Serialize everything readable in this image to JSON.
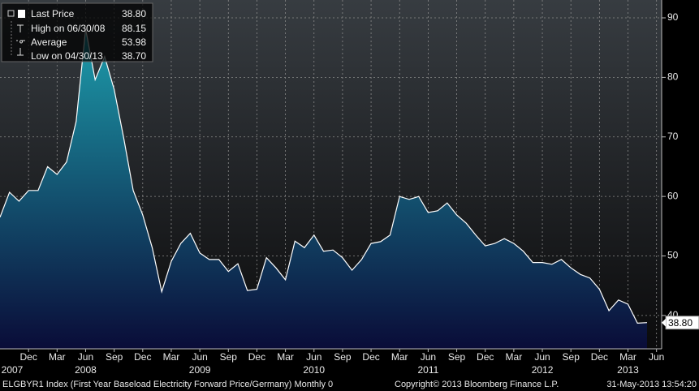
{
  "chart_data": {
    "type": "area",
    "series_name": "ELGBYR1 Index (First Year Baseload Electricity Forward Price/Germany)  Monthly 0",
    "categories": [
      null,
      null,
      null,
      "Dec",
      null,
      null,
      "Mar",
      null,
      null,
      "Jun",
      null,
      null,
      "Sep",
      null,
      null,
      "Dec",
      null,
      null,
      "Mar",
      null,
      null,
      "Jun",
      null,
      null,
      "Sep",
      null,
      null,
      "Dec",
      null,
      null,
      "Mar",
      null,
      null,
      "Jun",
      null,
      null,
      "Sep",
      null,
      null,
      "Dec",
      null,
      null,
      "Mar",
      null,
      null,
      "Jun",
      null,
      null,
      "Sep",
      null,
      null,
      "Dec",
      null,
      null,
      "Mar",
      null,
      null,
      "Jun",
      null,
      null,
      "Sep",
      null,
      null,
      "Dec",
      null,
      null,
      "Mar",
      null,
      null,
      "Jun"
    ],
    "year_categories": [
      null,
      "2007",
      null,
      null,
      null,
      null,
      null,
      null,
      null,
      "2008",
      null,
      null,
      null,
      null,
      null,
      null,
      null,
      null,
      null,
      null,
      null,
      "2009",
      null,
      null,
      null,
      null,
      null,
      null,
      null,
      null,
      null,
      null,
      null,
      "2010",
      null,
      null,
      null,
      null,
      null,
      null,
      null,
      null,
      null,
      null,
      null,
      "2011",
      null,
      null,
      null,
      null,
      null,
      null,
      null,
      null,
      null,
      null,
      null,
      "2012",
      null,
      null,
      null,
      null,
      null,
      null,
      null,
      null,
      "2013",
      null,
      null,
      null
    ],
    "values": [
      56.5,
      60.7,
      59.2,
      61,
      61,
      65,
      63.7,
      65.8,
      72.6,
      88.15,
      79.6,
      83.5,
      78,
      69.8,
      61,
      56.9,
      51.4,
      44,
      49.1,
      52.1,
      53.8,
      50.5,
      49.4,
      49.4,
      47.4,
      48.7,
      44.2,
      44.4,
      49.7,
      48,
      46,
      52.5,
      51.4,
      53.5,
      50.8,
      51,
      49.7,
      47.6,
      49.4,
      52.1,
      52.4,
      53.5,
      60,
      59.5,
      60,
      57.3,
      57.6,
      58.9,
      56.9,
      55.5,
      53.5,
      51.7,
      52.1,
      52.9,
      52.1,
      50.8,
      48.9,
      48.9,
      48.6,
      49.4,
      48,
      46.9,
      46.3,
      44.4,
      40.8,
      42.6,
      41.9,
      38.7,
      38.8,
      null
    ],
    "color": "#ffffff",
    "fill_top": "#1c96a6",
    "fill_bottom": "#0a0c38",
    "ylim": [
      34.4,
      93
    ],
    "yticks": [
      40,
      50,
      60,
      70,
      80,
      90
    ],
    "grid": true,
    "last_value": 38.8,
    "last_label": "38.80",
    "legend": [
      {
        "name": "Last Price",
        "value": "38.80"
      },
      {
        "name": "High on 06/30/08",
        "value": "88.15"
      },
      {
        "name": "Average",
        "value": "53.98"
      },
      {
        "name": "Low on 04/30/13",
        "value": "38.70"
      }
    ],
    "copyright": "Copyright© 2013 Bloomberg Finance L.P.",
    "timestamp": "31-May-2013 13:54:20"
  }
}
